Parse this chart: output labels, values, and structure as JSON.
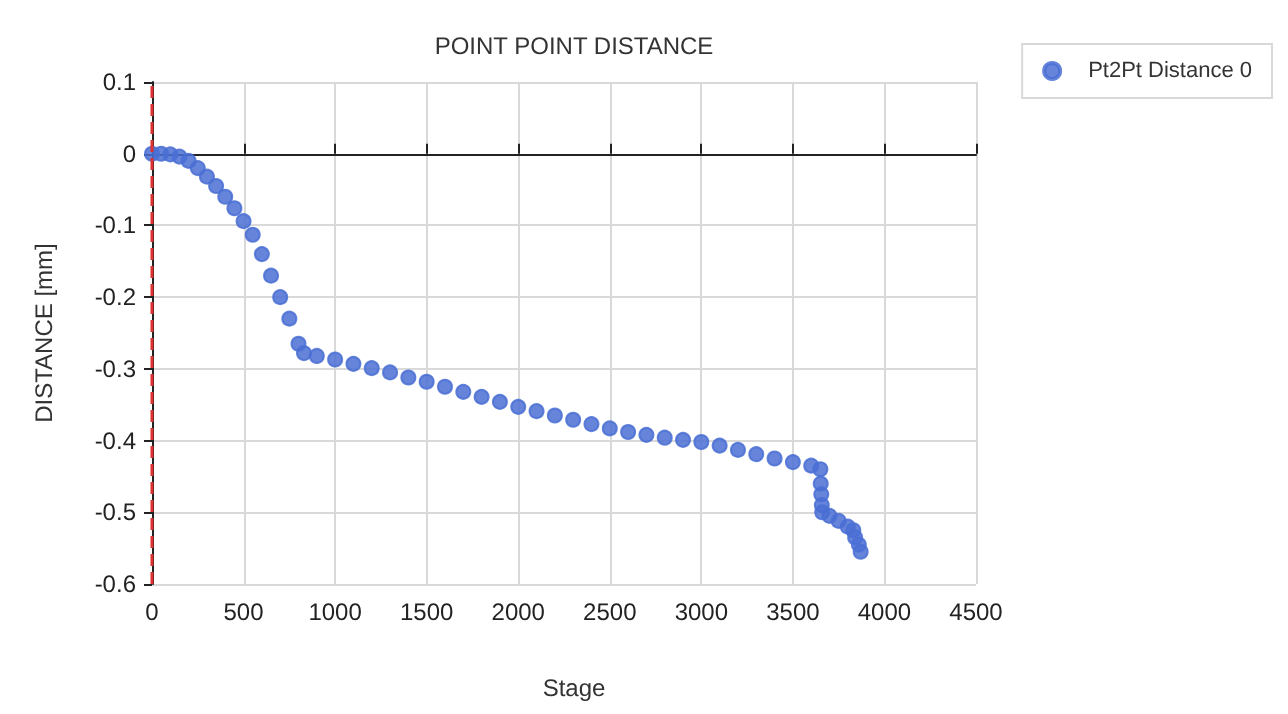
{
  "chart_data": {
    "type": "scatter",
    "title": "POINT POINT DISTANCE",
    "xlabel": "Stage",
    "ylabel": "DISTANCE [mm]",
    "series": [
      {
        "name": "Pt2Pt Distance 0",
        "color": "#4a6fd4",
        "x": [
          0,
          50,
          100,
          150,
          200,
          250,
          300,
          350,
          400,
          450,
          500,
          550,
          600,
          650,
          700,
          750,
          800,
          830,
          900,
          1000,
          1100,
          1200,
          1300,
          1400,
          1500,
          1600,
          1700,
          1800,
          1900,
          2000,
          2100,
          2200,
          2300,
          2400,
          2500,
          2600,
          2700,
          2800,
          2900,
          3000,
          3100,
          3200,
          3300,
          3400,
          3500,
          3600,
          3650,
          3652,
          3655,
          3658,
          3660,
          3700,
          3750,
          3800,
          3830,
          3840,
          3860,
          3870
        ],
        "values": [
          0,
          0,
          -0.001,
          -0.004,
          -0.01,
          -0.02,
          -0.032,
          -0.045,
          -0.06,
          -0.076,
          -0.094,
          -0.113,
          -0.14,
          -0.17,
          -0.2,
          -0.23,
          -0.265,
          -0.278,
          -0.282,
          -0.287,
          -0.293,
          -0.299,
          -0.305,
          -0.312,
          -0.318,
          -0.325,
          -0.332,
          -0.339,
          -0.346,
          -0.353,
          -0.359,
          -0.365,
          -0.371,
          -0.377,
          -0.383,
          -0.388,
          -0.392,
          -0.396,
          -0.399,
          -0.402,
          -0.407,
          -0.413,
          -0.419,
          -0.425,
          -0.43,
          -0.435,
          -0.44,
          -0.46,
          -0.475,
          -0.49,
          -0.5,
          -0.505,
          -0.512,
          -0.52,
          -0.525,
          -0.535,
          -0.545,
          -0.555
        ]
      }
    ],
    "xlim": [
      0,
      4500
    ],
    "xticks": [
      0,
      500,
      1000,
      1500,
      2000,
      2500,
      3000,
      3500,
      4000,
      4500
    ],
    "ylim": [
      -0.6,
      0.1
    ],
    "yticks": [
      -0.6,
      -0.5,
      -0.4,
      -0.3,
      -0.2,
      -0.1,
      0,
      0.1
    ],
    "ref_lines": [
      {
        "axis": "x",
        "value": 0,
        "color": "#e03030",
        "line_style": "dashed"
      }
    ],
    "grid": true,
    "legend": "top right",
    "marker": "circle"
  }
}
